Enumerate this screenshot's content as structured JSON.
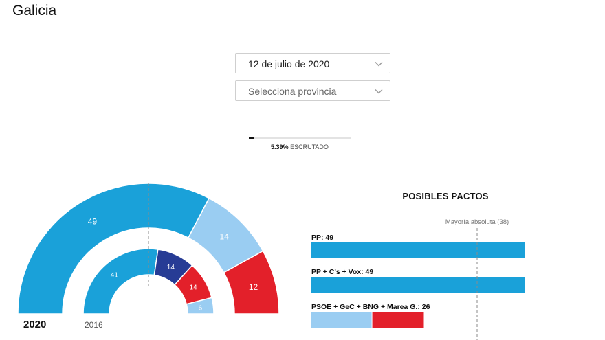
{
  "page": {
    "title": "Galicia"
  },
  "controls": {
    "date_select": {
      "value": "12 de julio de 2020",
      "icon": "chevron-down-icon"
    },
    "province_select": {
      "placeholder": "Selecciona provincia",
      "icon": "chevron-down-icon"
    }
  },
  "progress": {
    "percent": 5.39,
    "value_label": "5.39%",
    "suffix_label": "ESCRUTADO"
  },
  "colors": {
    "PP": "#1aa1d9",
    "GeC": "#9acdf2",
    "BNG": "#9acdf2",
    "PSdeG": "#e3202a",
    "EnMarea": "#273c95",
    "other": "#1aa1d9"
  },
  "chart_data": [
    {
      "type": "pie",
      "variant": "semicircle-hemicycle",
      "rings": [
        {
          "label": "2020",
          "slices": [
            {
              "value": 49,
              "color": "#1aa1d9"
            },
            {
              "value": 14,
              "color": "#9acdf2"
            },
            {
              "value": 12,
              "color": "#e3202a"
            }
          ]
        },
        {
          "label": "2016",
          "slices": [
            {
              "value": 41,
              "color": "#1aa1d9"
            },
            {
              "value": 14,
              "color": "#273c95"
            },
            {
              "value": 14,
              "color": "#e3202a"
            },
            {
              "value": 6,
              "color": "#9acdf2"
            }
          ]
        }
      ],
      "total_seats": 75,
      "majority_marker": 38
    },
    {
      "type": "bar",
      "orientation": "horizontal",
      "stacked": true,
      "title": "POSIBLES PACTOS",
      "majority_label": "Mayoría absoluta (38)",
      "majority": 38,
      "xlim": [
        0,
        49
      ],
      "bars": [
        {
          "label": "PP: 49",
          "segments": [
            {
              "value": 49,
              "color": "#1aa1d9"
            }
          ]
        },
        {
          "label": "PP + C's + Vox: 49",
          "segments": [
            {
              "value": 49,
              "color": "#1aa1d9"
            }
          ]
        },
        {
          "label": "PSOE + GeC + BNG + Marea G.: 26",
          "segments": [
            {
              "value": 14,
              "color": "#9acdf2"
            },
            {
              "value": 12,
              "color": "#e3202a"
            }
          ]
        }
      ]
    }
  ]
}
